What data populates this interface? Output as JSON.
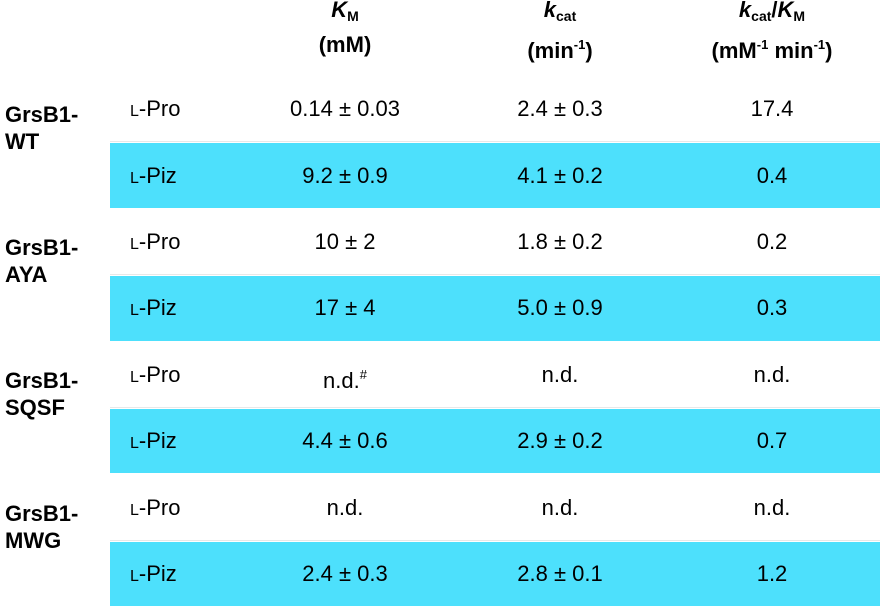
{
  "table": {
    "columns": [
      {
        "symbol": [
          {
            "text": "K",
            "style": "italic"
          },
          {
            "text": "M",
            "style": "sub"
          }
        ],
        "unit": [
          {
            "text": "(mM)",
            "style": "plain"
          }
        ]
      },
      {
        "symbol": [
          {
            "text": "k",
            "style": "italic"
          },
          {
            "text": "cat",
            "style": "sub"
          }
        ],
        "unit": [
          {
            "text": "(min",
            "style": "plain"
          },
          {
            "text": "-1",
            "style": "sup"
          },
          {
            "text": ")",
            "style": "plain"
          }
        ]
      },
      {
        "symbol": [
          {
            "text": "k",
            "style": "italic"
          },
          {
            "text": "cat",
            "style": "sub"
          },
          {
            "text": "/",
            "style": "plain"
          },
          {
            "text": "K",
            "style": "italic"
          },
          {
            "text": "M",
            "style": "sub"
          }
        ],
        "unit": [
          {
            "text": "(mM",
            "style": "plain"
          },
          {
            "text": "-1",
            "style": "sup"
          },
          {
            "text": " min",
            "style": "plain"
          },
          {
            "text": "-1",
            "style": "sup"
          },
          {
            "text": ")",
            "style": "plain"
          }
        ]
      }
    ],
    "groups": [
      {
        "name_lines": [
          "GrsB1-",
          "WT"
        ],
        "rows": [
          {
            "substrate": "L-Pro",
            "cells": [
              "0.14 ± 0.03",
              "2.4 ± 0.3",
              "17.4"
            ]
          },
          {
            "substrate": "L-Piz",
            "cells": [
              "9.2 ± 0.9",
              "4.1 ± 0.2",
              "0.4"
            ]
          }
        ]
      },
      {
        "name_lines": [
          "GrsB1-",
          "AYA"
        ],
        "rows": [
          {
            "substrate": "L-Pro",
            "cells": [
              "10 ± 2",
              "1.8 ± 0.2",
              "0.2"
            ]
          },
          {
            "substrate": "L-Piz",
            "cells": [
              "17 ± 4",
              "5.0 ± 0.9",
              "0.3"
            ]
          }
        ]
      },
      {
        "name_lines": [
          "GrsB1-",
          "SQSF"
        ],
        "rows": [
          {
            "substrate": "L-Pro",
            "cells": [
              {
                "text": "n.d.",
                "sup": "#"
              },
              "n.d.",
              "n.d."
            ]
          },
          {
            "substrate": "L-Piz",
            "cells": [
              "4.4 ± 0.6",
              "2.9 ± 0.2",
              "0.7"
            ]
          }
        ]
      },
      {
        "name_lines": [
          "GrsB1-",
          "MWG"
        ],
        "rows": [
          {
            "substrate": "L-Pro",
            "cells": [
              "n.d.",
              "n.d.",
              "n.d."
            ]
          },
          {
            "substrate": "L-Piz",
            "cells": [
              "2.4 ± 0.3",
              "2.8 ± 0.1",
              "1.2"
            ]
          }
        ]
      }
    ]
  }
}
